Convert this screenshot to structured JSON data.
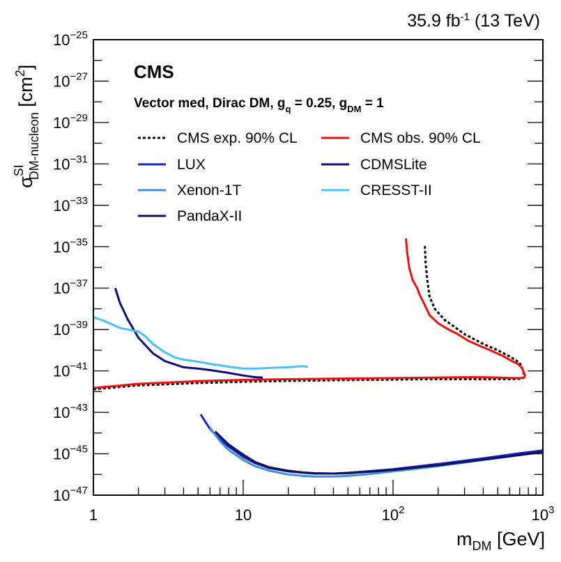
{
  "header": {
    "lumi": "35.9 fb",
    "lumi_exp": "-1",
    "energy": " (13 TeV)"
  },
  "labels": {
    "experiment": "CMS",
    "model_prefix": "Vector med, Dirac DM, g",
    "model_q": "q",
    "model_mid": " = 0.25, g",
    "model_dm": "DM",
    "model_suffix": " = 1",
    "y_sym": "σ",
    "y_sup": "SI",
    "y_sub": "DM-nucleon",
    "y_unit": " [cm",
    "y_unit_exp": "2",
    "y_unit_close": "]",
    "x_sym": "m",
    "x_sub": "DM",
    "x_unit": " [GeV]"
  },
  "chart_data": {
    "type": "line",
    "x_scale": "log",
    "y_scale": "log",
    "xlim": [
      1,
      1000
    ],
    "ylim": [
      1e-47,
      1e-25
    ],
    "x_ticks": [
      {
        "value": 1,
        "label": "1"
      },
      {
        "value": 10,
        "label": "10"
      },
      {
        "value": 100,
        "label": "10",
        "exp": "2"
      },
      {
        "value": 1000,
        "label": "10",
        "exp": "3"
      }
    ],
    "y_ticks": [
      {
        "value": 1e-25,
        "label": "10",
        "exp": "−25"
      },
      {
        "value": 1e-27,
        "label": "10",
        "exp": "−27"
      },
      {
        "value": 1e-29,
        "label": "10",
        "exp": "−29"
      },
      {
        "value": 1e-31,
        "label": "10",
        "exp": "−31"
      },
      {
        "value": 1e-33,
        "label": "10",
        "exp": "−33"
      },
      {
        "value": 1e-35,
        "label": "10",
        "exp": "−35"
      },
      {
        "value": 1e-37,
        "label": "10",
        "exp": "−37"
      },
      {
        "value": 1e-39,
        "label": "10",
        "exp": "−39"
      },
      {
        "value": 1e-41,
        "label": "10",
        "exp": "−41"
      },
      {
        "value": 1e-43,
        "label": "10",
        "exp": "−43"
      },
      {
        "value": 1e-45,
        "label": "10",
        "exp": "−45"
      },
      {
        "value": 1e-47,
        "label": "10",
        "exp": "−47"
      }
    ],
    "legend_position": "top-left",
    "series": [
      {
        "name": "CMS exp. 90% CL",
        "color": "#000000",
        "dashed": true,
        "x": [
          1,
          2,
          5,
          10,
          20,
          50,
          100,
          200,
          400,
          600,
          730,
          750,
          740,
          700,
          600,
          500,
          400,
          300,
          220,
          190,
          175,
          170,
          165,
          163
        ],
        "y": [
          1.3e-42,
          2e-42,
          2.6e-42,
          3e-42,
          3.3e-42,
          3.6e-42,
          3.8e-42,
          4e-42,
          4e-42,
          4e-42,
          4.2e-42,
          5e-42,
          1e-41,
          2.5e-41,
          5e-41,
          1e-40,
          2e-40,
          6e-40,
          3e-39,
          1e-38,
          4e-38,
          2e-37,
          1.5e-36,
          1.2e-35
        ]
      },
      {
        "name": "CMS obs. 90% CL",
        "color": "#ee1010",
        "dashed": false,
        "x": [
          1,
          2,
          5,
          10,
          20,
          50,
          100,
          200,
          300,
          400,
          500,
          600,
          700,
          750,
          760,
          740,
          720,
          680,
          620,
          550,
          460,
          380,
          320,
          270,
          230,
          200,
          175,
          160,
          150,
          145,
          135,
          128,
          124,
          122
        ],
        "y": [
          1.5e-42,
          2.4e-42,
          3.2e-42,
          3.7e-42,
          4e-42,
          4.3e-42,
          4.5e-42,
          4.8e-42,
          5e-42,
          5e-42,
          4.8e-42,
          4.6e-42,
          4.5e-42,
          4.8e-42,
          6e-42,
          1e-41,
          1.5e-41,
          2.2e-41,
          3e-41,
          5e-41,
          9e-41,
          1.6e-40,
          2.8e-40,
          6e-40,
          1.1e-39,
          2e-39,
          5e-39,
          2e-38,
          5e-38,
          1e-37,
          2.5e-37,
          1e-36,
          6e-36,
          2.5e-35
        ]
      },
      {
        "name": "LUX",
        "color": "#1520cc",
        "dashed": false,
        "x": [
          5.2,
          6,
          7,
          8,
          10,
          12,
          15,
          20,
          25,
          30,
          40,
          50,
          70,
          100,
          200,
          400,
          700,
          1000
        ],
        "y": [
          8e-44,
          1.6e-44,
          5e-45,
          2.2e-45,
          7e-46,
          3.5e-46,
          2e-46,
          1.4e-46,
          1.2e-46,
          1.1e-46,
          1.1e-46,
          1.2e-46,
          1.45e-46,
          1.8e-46,
          3.2e-46,
          6e-46,
          1.05e-45,
          1.45e-45
        ]
      },
      {
        "name": "Xenon-1T",
        "color": "#3d8fe3",
        "dashed": false,
        "x": [
          6,
          7,
          8,
          10,
          12,
          15,
          20,
          25,
          30,
          40,
          50,
          70,
          100,
          200,
          400,
          700,
          1000
        ],
        "y": [
          1.8e-44,
          4e-45,
          1.5e-45,
          5e-46,
          2.5e-46,
          1.5e-46,
          1e-46,
          8.5e-47,
          8e-47,
          8e-47,
          8.5e-47,
          1.05e-46,
          1.4e-46,
          2.5e-46,
          5e-46,
          8.5e-46,
          1.2e-45
        ]
      },
      {
        "name": "CDMSLite",
        "color": "#0c0c7a",
        "dashed": false,
        "x": [
          1.4,
          1.5,
          1.7,
          2.0,
          2.5,
          3.0,
          4.0,
          5.0,
          6.0,
          8.0,
          10,
          12,
          13.5
        ],
        "y": [
          1e-37,
          2e-38,
          3e-39,
          4e-40,
          7e-41,
          3e-41,
          1.5e-41,
          1.3e-41,
          1.1e-41,
          8e-42,
          6e-42,
          5e-42,
          4.8e-42
        ]
      },
      {
        "name": "CRESST-II",
        "color": "#47c4ee",
        "dashed": false,
        "x": [
          1,
          1.2,
          1.5,
          2.0,
          2.2,
          2.5,
          3.0,
          3.5,
          4.0,
          5.0,
          6.0,
          8.0,
          10,
          12,
          15,
          20,
          25,
          27
        ],
        "y": [
          4e-39,
          2.5e-39,
          1.2e-39,
          8e-40,
          5e-40,
          2e-40,
          8e-41,
          4.5e-41,
          3.5e-41,
          2.8e-41,
          2.2e-41,
          1.6e-41,
          1.3e-41,
          1.3e-41,
          1.4e-41,
          1.5e-41,
          1.7e-41,
          1.6e-41
        ]
      },
      {
        "name": "PandaX-II",
        "color": "#101055",
        "dashed": false,
        "x": [
          6.5,
          7,
          8,
          10,
          12,
          15,
          20,
          25,
          30,
          40,
          50,
          70,
          100,
          200,
          400,
          700,
          1000
        ],
        "y": [
          1.2e-44,
          7e-45,
          2.8e-45,
          9e-46,
          4e-46,
          2.2e-46,
          1.5e-46,
          1.25e-46,
          1.15e-46,
          1.1e-46,
          1.15e-46,
          1.35e-46,
          1.65e-46,
          2.8e-46,
          5.2e-46,
          8.8e-46,
          1.25e-45
        ]
      }
    ]
  }
}
